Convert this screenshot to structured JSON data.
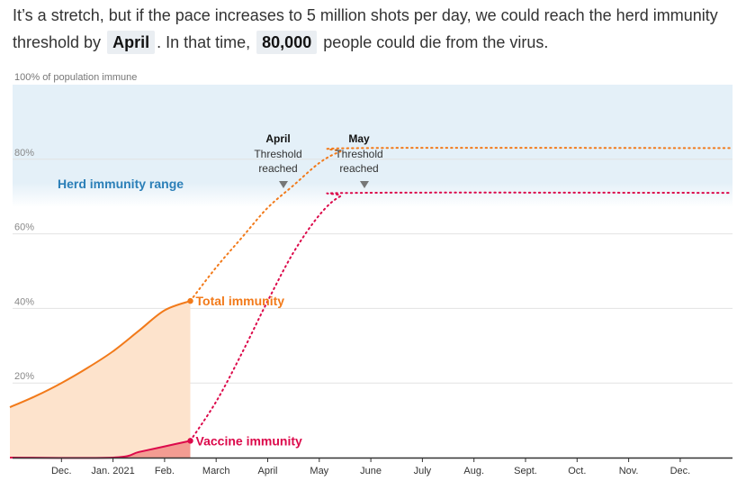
{
  "intro": {
    "part1": "It’s a stretch, but if the pace increases to 5 million shots per day, we could reach the herd immunity threshold by",
    "highlight_month": "April",
    "part2": ". In that time,",
    "highlight_deaths": "80,000",
    "part3": "people could die from the virus."
  },
  "chart_data": {
    "type": "line",
    "ylabel": "100% of population immune",
    "ylim": [
      0,
      100
    ],
    "y_ticks": [
      20,
      40,
      60,
      80
    ],
    "y_tick_labels": [
      "20%",
      "40%",
      "60%",
      "80%"
    ],
    "x_tick_labels": [
      "Dec.",
      "Jan. 2021",
      "Feb.",
      "March",
      "April",
      "May",
      "June",
      "July",
      "Aug.",
      "Sept.",
      "Oct.",
      "Nov.",
      "Dec."
    ],
    "band": {
      "label": "Herd immunity range",
      "from": 70,
      "to": 100
    },
    "series": [
      {
        "name": "Total immunity",
        "color": "#f27a1a",
        "observed": [
          [
            0,
            13.5
          ],
          [
            0.5,
            16.5
          ],
          [
            1,
            20
          ],
          [
            1.5,
            24
          ],
          [
            2,
            28.5
          ],
          [
            2.5,
            34
          ],
          [
            3,
            39.5
          ],
          [
            3.5,
            42
          ]
        ],
        "projected": [
          [
            3.5,
            42
          ],
          [
            4,
            51
          ],
          [
            4.5,
            59
          ],
          [
            5,
            67
          ],
          [
            5.5,
            73
          ],
          [
            6,
            79
          ],
          [
            6.4,
            82
          ],
          [
            6.8,
            83
          ],
          [
            14,
            83
          ]
        ]
      },
      {
        "name": "Vaccine immunity",
        "color": "#dc0a4b",
        "observed": [
          [
            0,
            0
          ],
          [
            2,
            0
          ],
          [
            2.5,
            1.5
          ],
          [
            3,
            3
          ],
          [
            3.5,
            4.5
          ]
        ],
        "projected": [
          [
            3.5,
            4.5
          ],
          [
            4,
            15
          ],
          [
            4.5,
            28
          ],
          [
            5,
            42
          ],
          [
            5.5,
            55
          ],
          [
            6,
            65
          ],
          [
            6.4,
            70
          ],
          [
            6.8,
            71
          ],
          [
            14,
            71
          ]
        ]
      }
    ],
    "annotations": [
      {
        "title": "April",
        "line1": "Threshold",
        "line2": "reached",
        "x": 5.25
      },
      {
        "title": "May",
        "line1": "Threshold",
        "line2": "reached",
        "x": 6.65
      }
    ]
  }
}
